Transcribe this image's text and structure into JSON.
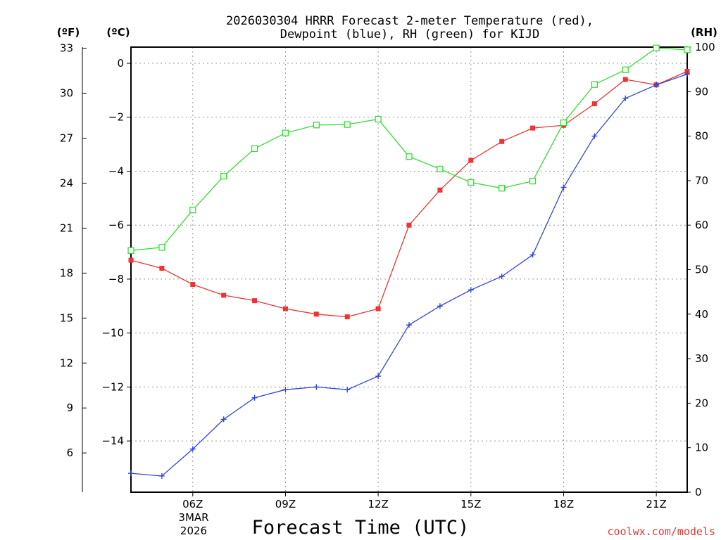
{
  "chart_data": {
    "type": "line",
    "title": [
      "2026030304 HRRR Forecast 2-meter Temperature (red),",
      "Dewpoint (blue), RH (green) for KIJD"
    ],
    "xlabel": "Forecast Time (UTC)",
    "credit": "coolwx.com/models",
    "units": {
      "fahrenheit": "(ºF)",
      "celsius": "(ºC)",
      "rh": "(RH)"
    },
    "x_hours": [
      4,
      5,
      6,
      7,
      8,
      9,
      10,
      11,
      12,
      13,
      14,
      15,
      16,
      17,
      18,
      19,
      20,
      21,
      22
    ],
    "xlim": [
      4,
      22
    ],
    "x_ticks": [
      {
        "hour": 6,
        "label": "06Z"
      },
      {
        "hour": 9,
        "label": "09Z"
      },
      {
        "hour": 12,
        "label": "12Z"
      },
      {
        "hour": 15,
        "label": "15Z"
      },
      {
        "hour": 18,
        "label": "18Z"
      },
      {
        "hour": 21,
        "label": "21Z"
      }
    ],
    "date_label": [
      "3MAR",
      "2026"
    ],
    "celsius_axis": {
      "ylim": [
        -15.9,
        0.6
      ],
      "ticks": [
        0,
        -2,
        -4,
        -6,
        -8,
        -10,
        -12,
        -14
      ],
      "tick_labels": [
        "0",
        "−2",
        "−4",
        "−6",
        "−8",
        "−10",
        "−12",
        "−14"
      ]
    },
    "fahrenheit_axis": {
      "ticks": [
        33,
        30,
        27,
        24,
        21,
        18,
        15,
        12,
        9,
        6
      ]
    },
    "rh_axis": {
      "ylim": [
        0,
        100
      ],
      "ticks": [
        100,
        90,
        80,
        70,
        60,
        50,
        40,
        30,
        20,
        10,
        0
      ]
    },
    "series": [
      {
        "name": "Temperature",
        "units": "C",
        "color": "#ee3333",
        "marker": "filled-square",
        "values": [
          -7.3,
          -7.6,
          -8.2,
          -8.6,
          -8.8,
          -9.1,
          -9.3,
          -9.4,
          -9.1,
          -6.0,
          -4.7,
          -3.6,
          -2.9,
          -2.4,
          -2.3,
          -1.5,
          -0.6,
          -0.8,
          -0.3
        ]
      },
      {
        "name": "Dewpoint",
        "units": "C",
        "color": "#3344dd",
        "marker": "plus",
        "values": [
          -15.2,
          -15.3,
          -14.3,
          -13.2,
          -12.4,
          -12.1,
          -12.0,
          -12.1,
          -11.6,
          -9.7,
          -9.0,
          -8.4,
          -7.9,
          -7.1,
          -4.6,
          -2.7,
          -1.3,
          -0.8,
          -0.4
        ]
      },
      {
        "name": "Relative Humidity",
        "units": "%",
        "color": "#33dd33",
        "marker": "open-square",
        "values": [
          54.3,
          55.0,
          63.4,
          71.0,
          77.2,
          80.7,
          82.5,
          82.6,
          83.8,
          75.4,
          72.6,
          69.6,
          68.3,
          69.9,
          83.0,
          91.6,
          94.9,
          99.8,
          99.4
        ]
      }
    ]
  }
}
